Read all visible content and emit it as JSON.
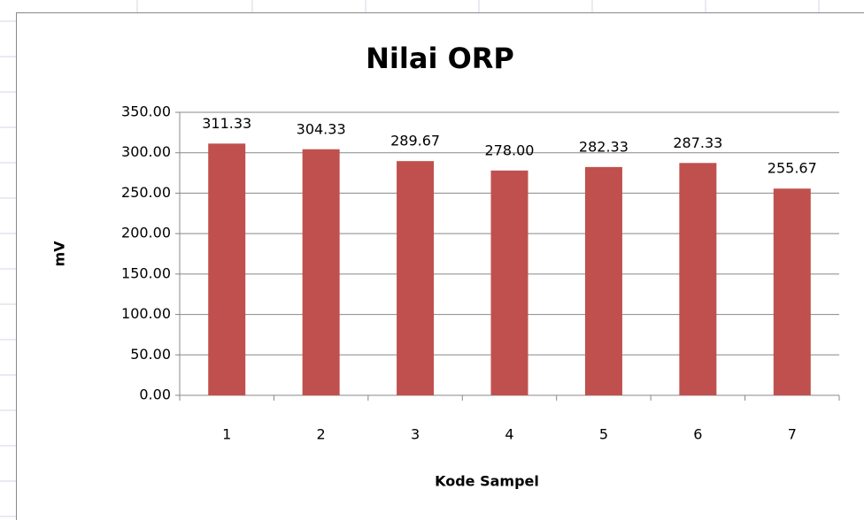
{
  "chart_data": {
    "type": "bar",
    "title": "Nilai ORP",
    "xlabel": "Kode Sampel",
    "ylabel": "mV",
    "categories": [
      "1",
      "2",
      "3",
      "4",
      "5",
      "6",
      "7"
    ],
    "values": [
      311.33,
      304.33,
      289.67,
      278,
      282.33,
      287.33,
      255.67
    ],
    "value_labels": [
      "311.33",
      "304.33",
      "289.67",
      "278.00",
      "282.33",
      "287.33",
      "255.67"
    ],
    "color": "#c0504d",
    "ylim": [
      0,
      350
    ],
    "yticks": [
      {
        "value": 0,
        "label": "0.00"
      },
      {
        "value": 50,
        "label": "50.00"
      },
      {
        "value": 100,
        "label": "100.00"
      },
      {
        "value": 150,
        "label": "150.00"
      },
      {
        "value": 200,
        "label": "200.00"
      },
      {
        "value": 250,
        "label": "250.00"
      },
      {
        "value": 300,
        "label": "300.00"
      },
      {
        "value": 350,
        "label": "350.00"
      }
    ],
    "grid": true
  }
}
